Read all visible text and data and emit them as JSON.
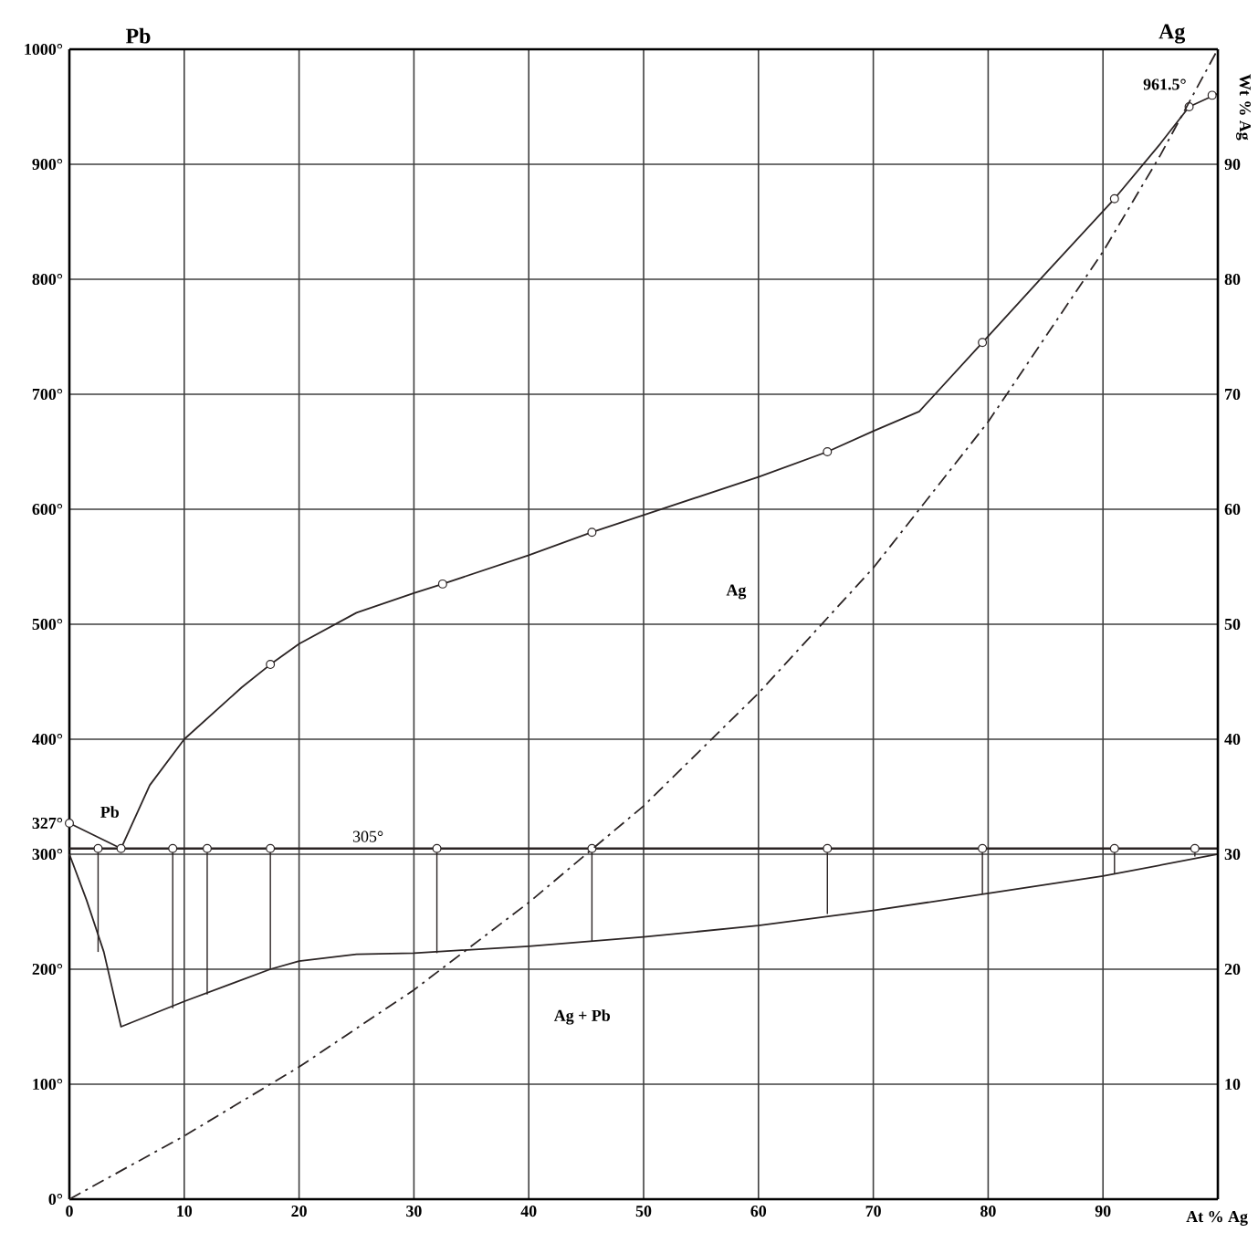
{
  "chart_data": {
    "type": "line",
    "xlabel": "At % Ag",
    "y2label": "Wt % Ag",
    "xlim": [
      0,
      100
    ],
    "xticks": [
      0,
      10,
      20,
      30,
      40,
      50,
      60,
      70,
      80,
      90
    ],
    "ylim": [
      0,
      1000
    ],
    "yticks": [
      {
        "value": 0,
        "label": "0°"
      },
      {
        "value": 100,
        "label": "100°"
      },
      {
        "value": 200,
        "label": "200°"
      },
      {
        "value": 300,
        "label": "300°"
      },
      {
        "value": 327,
        "label": "327°"
      },
      {
        "value": 400,
        "label": "400°"
      },
      {
        "value": 500,
        "label": "500°"
      },
      {
        "value": 600,
        "label": "600°"
      },
      {
        "value": 700,
        "label": "700°"
      },
      {
        "value": 800,
        "label": "800°"
      },
      {
        "value": 900,
        "label": "900°"
      },
      {
        "value": 1000,
        "label": "1000°"
      }
    ],
    "y2lim": [
      0,
      100
    ],
    "y2ticks": [
      10,
      20,
      30,
      40,
      50,
      60,
      70,
      80,
      90
    ],
    "grid": true,
    "series": [
      {
        "color": "#2b2424",
        "x": [
          0,
          4.5,
          7,
          10,
          15,
          17.5,
          20,
          25,
          30,
          32.5,
          40,
          45.5,
          50,
          60,
          66,
          70,
          74,
          79.5,
          85,
          91,
          95,
          97.5,
          100
        ],
        "values": [
          327,
          305,
          360,
          400,
          445,
          465,
          483,
          510,
          527,
          535,
          560,
          580,
          595,
          628,
          650,
          668,
          685,
          745,
          805,
          870,
          918,
          950,
          961.5
        ]
      },
      {
        "color": "#2b2424",
        "x": [
          0,
          1.5,
          3,
          4.5,
          10,
          17.5,
          20,
          25,
          30,
          40,
          50,
          60,
          70,
          80,
          90,
          100
        ],
        "values": [
          300,
          260,
          215,
          150,
          172,
          200,
          207,
          213,
          214,
          220,
          228,
          238,
          251,
          266,
          281,
          300
        ]
      },
      {
        "axis": "y2",
        "line_style": "dashed",
        "color": "#2b2424",
        "x": [
          0,
          10,
          20,
          30,
          40,
          50,
          60,
          70,
          80,
          90,
          95,
          100
        ],
        "values": [
          0,
          5.5,
          11.5,
          18.2,
          25.8,
          34.2,
          44,
          54.9,
          67.6,
          82.4,
          90.8,
          100
        ]
      },
      {
        "type": "scatter",
        "marker": "circle",
        "color": "#2b2424",
        "x": [
          0,
          4.5,
          17.5,
          32.5,
          45.5,
          66,
          79.5,
          91,
          97.5,
          99.5
        ],
        "values": [
          327,
          305,
          465,
          535,
          580,
          650,
          745,
          870,
          950,
          960
        ]
      },
      {
        "type": "scatter",
        "marker": "circle",
        "color": "#2b2424",
        "x": [
          2.5,
          9,
          12,
          17.5,
          32,
          45.5,
          66,
          79.5,
          91,
          98
        ],
        "values": [
          305,
          305,
          305,
          305,
          305,
          305,
          305,
          305,
          305,
          305
        ],
        "errors": [
          [
            215,
            305
          ],
          [
            166,
            305
          ],
          [
            178,
            305
          ],
          [
            200,
            305
          ],
          [
            214,
            305
          ],
          [
            224,
            305
          ],
          [
            248,
            305
          ],
          [
            265,
            305
          ],
          [
            283,
            305
          ],
          [
            298,
            305
          ]
        ]
      }
    ],
    "ref_lines": [
      {
        "axis": "y",
        "value": 305,
        "label": "305°",
        "color": "#2b2424"
      }
    ],
    "annotations": [
      "Pb",
      "Ag",
      "Pb",
      "Ag",
      "Ag + Pb",
      {
        "text": "961.5°",
        "x": 100,
        "y": 961.5
      }
    ]
  }
}
